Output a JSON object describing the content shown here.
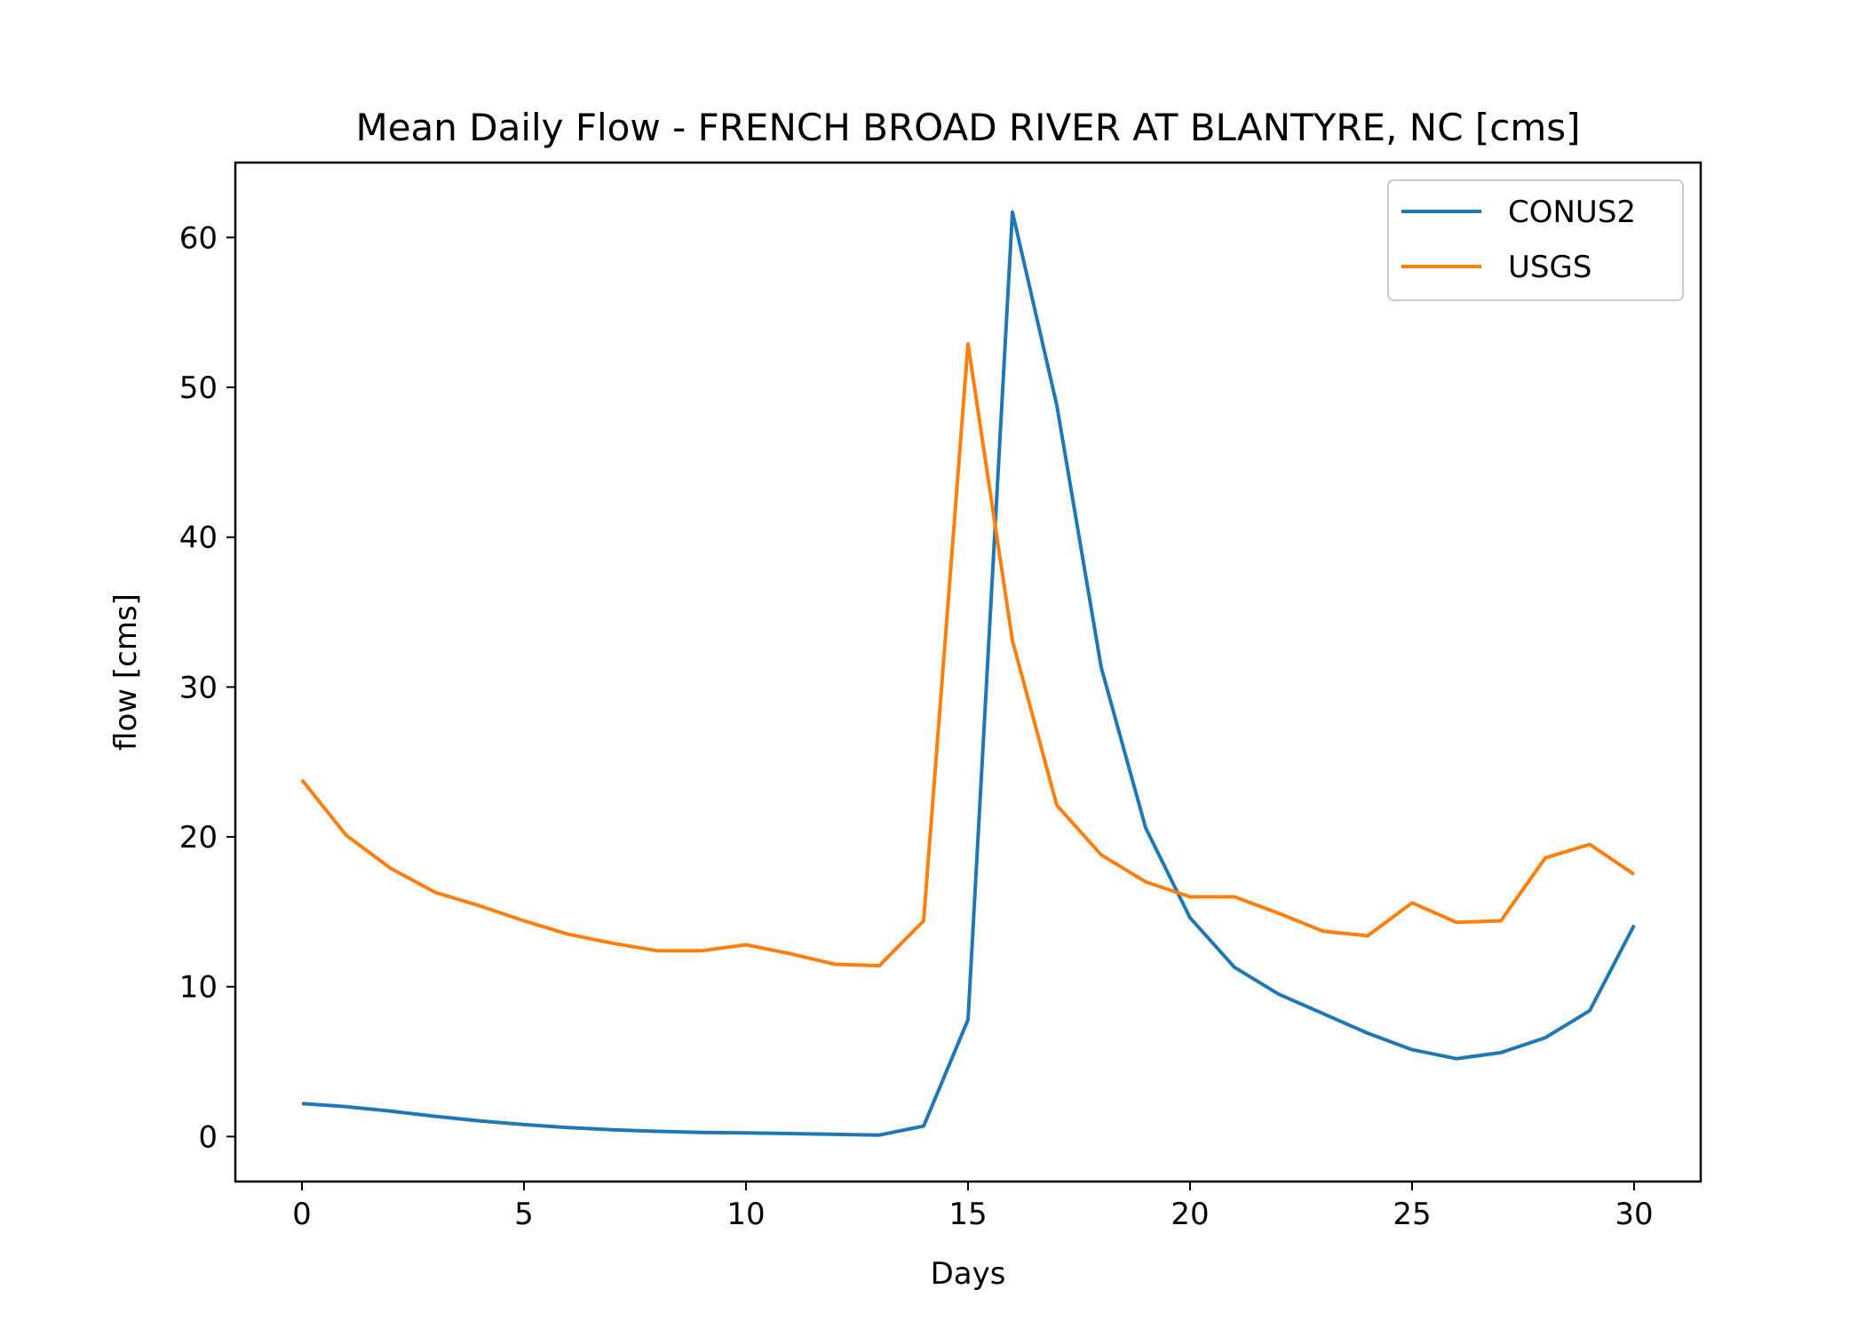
{
  "chart_data": {
    "type": "line",
    "title": "Mean Daily Flow - FRENCH BROAD RIVER AT BLANTYRE, NC [cms]",
    "xlabel": "Days",
    "ylabel": "flow [cms]",
    "xlim": [
      -1.5,
      31.5
    ],
    "ylim": [
      -3,
      65
    ],
    "xticks": [
      0,
      5,
      10,
      15,
      20,
      25,
      30
    ],
    "yticks": [
      0,
      10,
      20,
      30,
      40,
      50,
      60
    ],
    "grid": false,
    "legend_position": "top-right",
    "x": [
      0,
      1,
      2,
      3,
      4,
      5,
      6,
      7,
      8,
      9,
      10,
      11,
      12,
      13,
      14,
      15,
      16,
      17,
      18,
      19,
      20,
      21,
      22,
      23,
      24,
      25,
      26,
      27,
      28,
      29,
      30
    ],
    "series": [
      {
        "name": "CONUS2",
        "color": "#1f77b4",
        "values": [
          2.2,
          2.0,
          1.7,
          1.35,
          1.05,
          0.8,
          0.6,
          0.45,
          0.35,
          0.28,
          0.25,
          0.2,
          0.15,
          0.1,
          0.7,
          7.8,
          61.7,
          48.8,
          31.3,
          20.6,
          14.6,
          11.3,
          9.5,
          8.2,
          6.9,
          5.8,
          5.2,
          5.6,
          6.6,
          8.4,
          14.1
        ]
      },
      {
        "name": "USGS",
        "color": "#ff7f0e",
        "values": [
          23.8,
          20.1,
          17.9,
          16.3,
          15.4,
          14.4,
          13.5,
          12.9,
          12.4,
          12.4,
          12.8,
          12.2,
          11.5,
          11.4,
          14.4,
          52.9,
          33.1,
          22.1,
          18.8,
          17.0,
          16.0,
          16.0,
          14.9,
          13.7,
          13.4,
          15.6,
          14.3,
          14.4,
          18.6,
          19.5,
          17.5
        ]
      }
    ]
  }
}
